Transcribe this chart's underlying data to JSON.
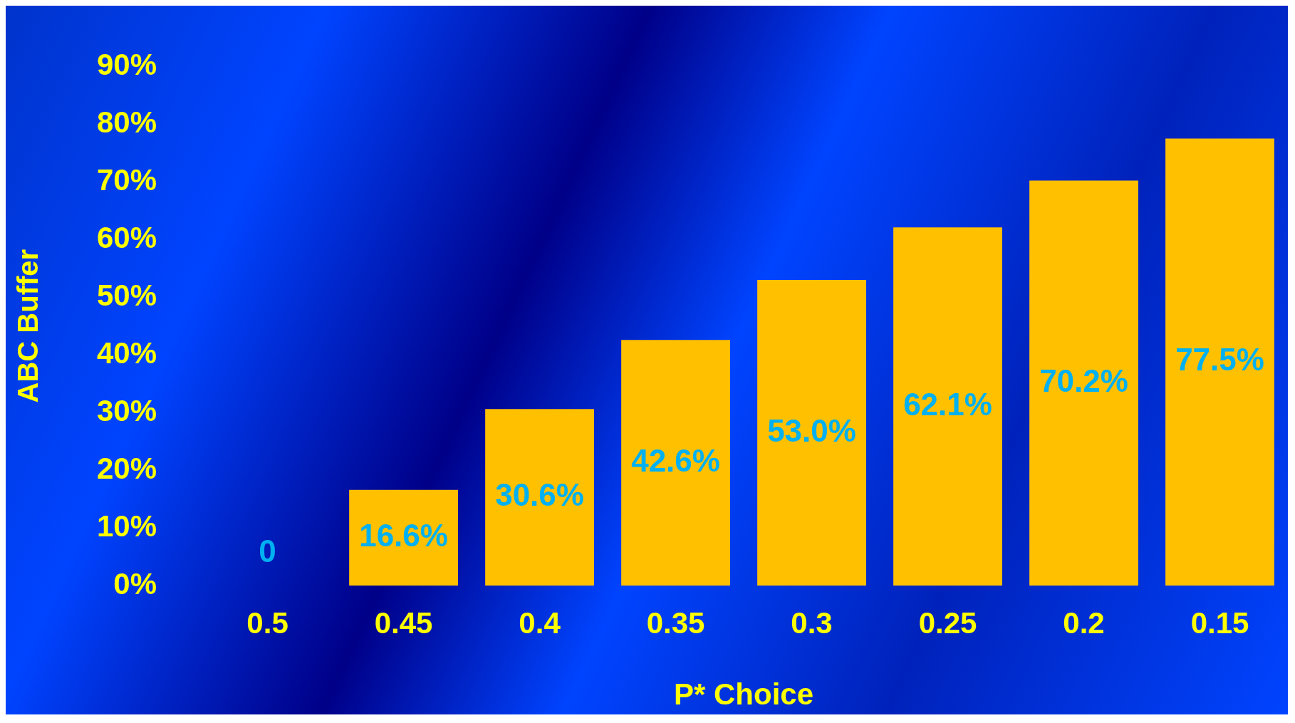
{
  "chart_data": {
    "type": "bar",
    "xlabel": "P* Choice",
    "ylabel": "ABC Buffer",
    "categories": [
      "0.5",
      "0.45",
      "0.4",
      "0.35",
      "0.3",
      "0.25",
      "0.2",
      "0.15"
    ],
    "values": [
      0,
      16.6,
      30.6,
      42.6,
      53.0,
      62.1,
      70.2,
      77.5
    ],
    "value_labels": [
      "0",
      "16.6%",
      "30.6%",
      "42.6%",
      "53.0%",
      "62.1%",
      "70.2%",
      "77.5%"
    ],
    "color": "#ffc000",
    "ylim": [
      0,
      90
    ],
    "yticks": [
      {
        "value": 0,
        "label": "0%"
      },
      {
        "value": 10,
        "label": "10%"
      },
      {
        "value": 20,
        "label": "20%"
      },
      {
        "value": 30,
        "label": "30%"
      },
      {
        "value": 40,
        "label": "40%"
      },
      {
        "value": 50,
        "label": "50%"
      },
      {
        "value": 60,
        "label": "60%"
      },
      {
        "value": 70,
        "label": "70%"
      },
      {
        "value": 80,
        "label": "80%"
      },
      {
        "value": 90,
        "label": "90%"
      }
    ],
    "grid": false,
    "legend": false
  }
}
